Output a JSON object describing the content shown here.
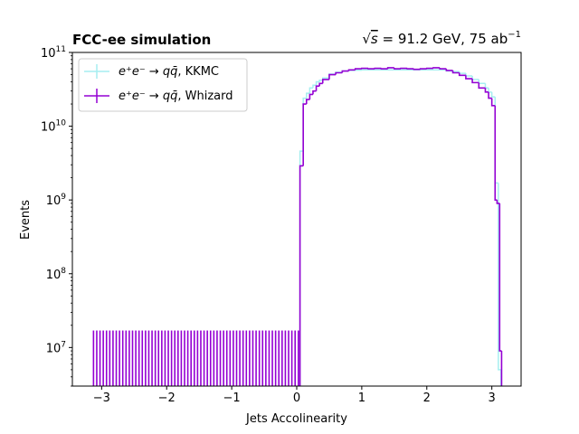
{
  "chart_data": {
    "type": "step",
    "title_left": "FCC-ee simulation",
    "title_right_sqrt_symbol": "√",
    "title_right_sqrt_var": "s",
    "title_right_energy": " = 91.2 GeV, 75 ab",
    "title_right_exp": "−1",
    "xlabel": "Jets Accolinearity",
    "ylabel": "Events",
    "yscale": "log",
    "xlim": [
      -3.45,
      3.45
    ],
    "ylim": [
      3000000,
      100000000000
    ],
    "xticks": [
      -3,
      -2,
      -1,
      0,
      1,
      2,
      3
    ],
    "xtick_labels": [
      "−3",
      "−2",
      "−1",
      "0",
      "1",
      "2",
      "3"
    ],
    "yticks": [
      10000000,
      100000000,
      1000000000,
      10000000000,
      100000000000
    ],
    "ytick_labels": [
      {
        "base": "10",
        "exp": "7"
      },
      {
        "base": "10",
        "exp": "8"
      },
      {
        "base": "10",
        "exp": "9"
      },
      {
        "base": "10",
        "exp": "10"
      },
      {
        "base": "10",
        "exp": "11"
      }
    ],
    "legend_position": "upper-left",
    "colors": {
      "kkmc": "#a6eef0",
      "whizard": "#9400d3"
    },
    "series": [
      {
        "key": "kkmc",
        "legend_main": "e⁺e⁻ → qq̄",
        "legend_suffix": ", KKMC",
        "bins": [
          {
            "x0": 0.05,
            "x1": 0.1,
            "y": 4600000000
          },
          {
            "x0": 0.1,
            "x1": 0.15,
            "y": 24000000000
          },
          {
            "x0": 0.15,
            "x1": 0.2,
            "y": 28000000000
          },
          {
            "x0": 0.2,
            "x1": 0.25,
            "y": 33000000000
          },
          {
            "x0": 0.25,
            "x1": 0.3,
            "y": 36000000000
          },
          {
            "x0": 0.3,
            "x1": 0.35,
            "y": 40000000000
          },
          {
            "x0": 0.35,
            "x1": 0.4,
            "y": 42000000000
          },
          {
            "x0": 0.4,
            "x1": 0.5,
            "y": 45000000000
          },
          {
            "x0": 0.5,
            "x1": 0.6,
            "y": 51000000000
          },
          {
            "x0": 0.6,
            "x1": 0.7,
            "y": 54000000000
          },
          {
            "x0": 0.7,
            "x1": 0.8,
            "y": 56000000000
          },
          {
            "x0": 0.8,
            "x1": 0.9,
            "y": 57000000000
          },
          {
            "x0": 0.9,
            "x1": 1.0,
            "y": 57500000000
          },
          {
            "x0": 1.0,
            "x1": 1.5,
            "y": 58000000000
          },
          {
            "x0": 1.5,
            "x1": 2.0,
            "y": 58000000000
          },
          {
            "x0": 2.0,
            "x1": 2.3,
            "y": 58000000000
          },
          {
            "x0": 2.3,
            "x1": 2.4,
            "y": 56000000000
          },
          {
            "x0": 2.4,
            "x1": 2.5,
            "y": 55000000000
          },
          {
            "x0": 2.5,
            "x1": 2.6,
            "y": 52000000000
          },
          {
            "x0": 2.6,
            "x1": 2.7,
            "y": 48000000000
          },
          {
            "x0": 2.7,
            "x1": 2.8,
            "y": 43000000000
          },
          {
            "x0": 2.8,
            "x1": 2.9,
            "y": 38000000000
          },
          {
            "x0": 2.9,
            "x1": 2.95,
            "y": 33000000000
          },
          {
            "x0": 2.95,
            "x1": 3.0,
            "y": 29000000000
          },
          {
            "x0": 3.0,
            "x1": 3.05,
            "y": 25000000000
          },
          {
            "x0": 3.05,
            "x1": 3.1,
            "y": 1700000000
          },
          {
            "x0": 3.1,
            "x1": 3.14,
            "y": 5000000
          }
        ]
      },
      {
        "key": "whizard",
        "legend_main": "e⁺e⁻ → qq̄",
        "legend_suffix": ", Whizard",
        "low_bars": {
          "x_start": -3.125,
          "x_step": 0.05,
          "count": 64,
          "y": 17000000
        },
        "bins": [
          {
            "x0": 0.05,
            "x1": 0.1,
            "y": 2900000000
          },
          {
            "x0": 0.1,
            "x1": 0.15,
            "y": 20000000000
          },
          {
            "x0": 0.15,
            "x1": 0.2,
            "y": 23000000000
          },
          {
            "x0": 0.2,
            "x1": 0.25,
            "y": 27000000000
          },
          {
            "x0": 0.25,
            "x1": 0.3,
            "y": 30000000000
          },
          {
            "x0": 0.3,
            "x1": 0.35,
            "y": 35000000000
          },
          {
            "x0": 0.35,
            "x1": 0.4,
            "y": 38000000000
          },
          {
            "x0": 0.4,
            "x1": 0.5,
            "y": 43000000000
          },
          {
            "x0": 0.5,
            "x1": 0.6,
            "y": 50000000000
          },
          {
            "x0": 0.6,
            "x1": 0.7,
            "y": 53000000000
          },
          {
            "x0": 0.7,
            "x1": 0.8,
            "y": 56000000000
          },
          {
            "x0": 0.8,
            "x1": 0.9,
            "y": 58000000000
          },
          {
            "x0": 0.9,
            "x1": 1.0,
            "y": 60000000000
          },
          {
            "x0": 1.0,
            "x1": 1.1,
            "y": 61000000000
          },
          {
            "x0": 1.1,
            "x1": 1.2,
            "y": 60000000000
          },
          {
            "x0": 1.2,
            "x1": 1.3,
            "y": 61000000000
          },
          {
            "x0": 1.3,
            "x1": 1.4,
            "y": 60000000000
          },
          {
            "x0": 1.4,
            "x1": 1.5,
            "y": 62000000000
          },
          {
            "x0": 1.5,
            "x1": 1.6,
            "y": 60000000000
          },
          {
            "x0": 1.6,
            "x1": 1.7,
            "y": 61000000000
          },
          {
            "x0": 1.7,
            "x1": 1.8,
            "y": 60000000000
          },
          {
            "x0": 1.8,
            "x1": 1.9,
            "y": 59000000000
          },
          {
            "x0": 1.9,
            "x1": 2.0,
            "y": 60000000000
          },
          {
            "x0": 2.0,
            "x1": 2.1,
            "y": 61000000000
          },
          {
            "x0": 2.1,
            "x1": 2.2,
            "y": 62000000000
          },
          {
            "x0": 2.2,
            "x1": 2.3,
            "y": 60000000000
          },
          {
            "x0": 2.3,
            "x1": 2.4,
            "y": 57000000000
          },
          {
            "x0": 2.4,
            "x1": 2.5,
            "y": 53000000000
          },
          {
            "x0": 2.5,
            "x1": 2.6,
            "y": 49000000000
          },
          {
            "x0": 2.6,
            "x1": 2.7,
            "y": 44000000000
          },
          {
            "x0": 2.7,
            "x1": 2.8,
            "y": 39000000000
          },
          {
            "x0": 2.8,
            "x1": 2.9,
            "y": 33000000000
          },
          {
            "x0": 2.9,
            "x1": 2.95,
            "y": 29000000000
          },
          {
            "x0": 2.95,
            "x1": 3.0,
            "y": 24000000000
          },
          {
            "x0": 3.0,
            "x1": 3.05,
            "y": 19000000000
          },
          {
            "x0": 3.05,
            "x1": 3.08,
            "y": 1000000000
          },
          {
            "x0": 3.08,
            "x1": 3.12,
            "y": 900000000
          },
          {
            "x0": 3.12,
            "x1": 3.15,
            "y": 9000000
          }
        ]
      }
    ]
  }
}
